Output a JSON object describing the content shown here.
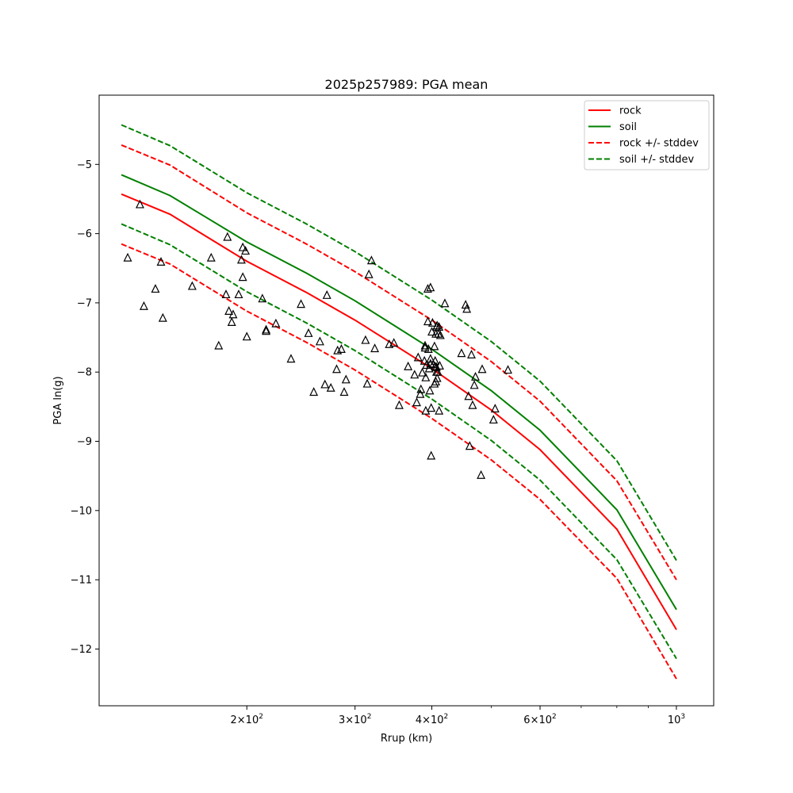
{
  "chart_data": {
    "type": "scatter",
    "title": "2025p257989: PGA mean",
    "xlabel": "Rrup (km)",
    "ylabel": "PGA ln(g)",
    "xscale": "log",
    "xlim": [
      115,
      1150
    ],
    "ylim": [
      -12.82,
      -4.0
    ],
    "x_ticks": [
      {
        "value": 200,
        "label_mantissa": "2",
        "label_exp": "2"
      },
      {
        "value": 300,
        "label_mantissa": "3",
        "label_exp": "2"
      },
      {
        "value": 400,
        "label_mantissa": "4",
        "label_exp": "2"
      },
      {
        "value": 600,
        "label_mantissa": "6",
        "label_exp": "2"
      },
      {
        "value": 1000,
        "label_mantissa": "",
        "label_exp": "3"
      }
    ],
    "x_minor_ticks": [
      500,
      700,
      800,
      900
    ],
    "y_ticks": [
      {
        "value": -5,
        "label": "−5"
      },
      {
        "value": -6,
        "label": "−6"
      },
      {
        "value": -7,
        "label": "−7"
      },
      {
        "value": -8,
        "label": "−8"
      },
      {
        "value": -9,
        "label": "−9"
      },
      {
        "value": -10,
        "label": "−10"
      },
      {
        "value": -11,
        "label": "−11"
      },
      {
        "value": -12,
        "label": "−12"
      }
    ],
    "grid": false,
    "legend_position": "top-right",
    "series": [
      {
        "name": "rock",
        "style": "solid",
        "color": "#ff0000",
        "x": [
          125,
          150,
          200,
          250,
          300,
          400,
          500,
          600,
          800,
          1000
        ],
        "y": [
          -5.43,
          -5.72,
          -6.4,
          -6.85,
          -7.25,
          -7.95,
          -8.55,
          -9.12,
          -10.27,
          -11.72
        ]
      },
      {
        "name": "soil",
        "style": "solid",
        "color": "#008000",
        "x": [
          125,
          150,
          200,
          250,
          300,
          400,
          500,
          600,
          800,
          1000
        ],
        "y": [
          -5.15,
          -5.45,
          -6.12,
          -6.57,
          -6.97,
          -7.67,
          -8.27,
          -8.84,
          -9.99,
          -11.43
        ]
      },
      {
        "name": "rock +/- stddev",
        "style": "dashed",
        "color": "#ff0000",
        "x": [
          125,
          150,
          200,
          250,
          300,
          400,
          500,
          600,
          800,
          1000
        ],
        "y": [
          -4.72,
          -5.01,
          -5.7,
          -6.15,
          -6.55,
          -7.25,
          -7.85,
          -8.42,
          -9.57,
          -11.0
        ]
      },
      {
        "name": "",
        "style": "dashed",
        "color": "#ff0000",
        "x": [
          125,
          150,
          200,
          250,
          300,
          400,
          500,
          600,
          800,
          1000
        ],
        "y": [
          -6.15,
          -6.44,
          -7.12,
          -7.57,
          -7.97,
          -8.67,
          -9.27,
          -9.84,
          -10.98,
          -12.43
        ]
      },
      {
        "name": "soil +/- stddev",
        "style": "dashed",
        "color": "#008000",
        "x": [
          125,
          150,
          200,
          250,
          300,
          400,
          500,
          600,
          800,
          1000
        ],
        "y": [
          -4.43,
          -4.73,
          -5.41,
          -5.86,
          -6.26,
          -6.96,
          -7.56,
          -8.13,
          -9.28,
          -10.72
        ]
      },
      {
        "name": "",
        "style": "dashed",
        "color": "#008000",
        "x": [
          125,
          150,
          200,
          250,
          300,
          400,
          500,
          600,
          800,
          1000
        ],
        "y": [
          -5.86,
          -6.16,
          -6.84,
          -7.29,
          -7.69,
          -8.39,
          -8.99,
          -9.56,
          -10.71,
          -12.14
        ]
      }
    ],
    "legend_entries": [
      {
        "label": "rock",
        "style": "solid",
        "color": "#ff0000"
      },
      {
        "label": "soil",
        "style": "solid",
        "color": "#008000"
      },
      {
        "label": "rock +/- stddev",
        "style": "dashed",
        "color": "#ff0000"
      },
      {
        "label": "soil +/- stddev",
        "style": "dashed",
        "color": "#008000"
      }
    ],
    "observations": {
      "marker": "triangle-up",
      "points": [
        [
          128,
          -6.35
        ],
        [
          134,
          -5.58
        ],
        [
          136,
          -7.05
        ],
        [
          142,
          -6.8
        ],
        [
          145,
          -6.41
        ],
        [
          146,
          -7.22
        ],
        [
          163,
          -6.76
        ],
        [
          175,
          -6.35
        ],
        [
          180,
          -7.62
        ],
        [
          185,
          -6.88
        ],
        [
          186,
          -6.05
        ],
        [
          187,
          -7.12
        ],
        [
          189,
          -7.28
        ],
        [
          190,
          -7.17
        ],
        [
          194,
          -6.88
        ],
        [
          196,
          -6.38
        ],
        [
          197,
          -6.63
        ],
        [
          197,
          -6.2
        ],
        [
          199,
          -6.25
        ],
        [
          200,
          -7.49
        ],
        [
          212,
          -6.94
        ],
        [
          215,
          -7.39
        ],
        [
          215,
          -7.41
        ],
        [
          223,
          -7.3
        ],
        [
          236,
          -7.81
        ],
        [
          245,
          -7.02
        ],
        [
          252,
          -7.44
        ],
        [
          257,
          -8.29
        ],
        [
          263,
          -7.56
        ],
        [
          268,
          -8.18
        ],
        [
          270,
          -6.89
        ],
        [
          274,
          -8.23
        ],
        [
          280,
          -7.96
        ],
        [
          281,
          -7.69
        ],
        [
          285,
          -7.67
        ],
        [
          288,
          -8.29
        ],
        [
          290,
          -8.11
        ],
        [
          312,
          -7.54
        ],
        [
          314,
          -8.17
        ],
        [
          316,
          -6.59
        ],
        [
          319,
          -6.39
        ],
        [
          323,
          -7.66
        ],
        [
          341,
          -7.6
        ],
        [
          347,
          -7.58
        ],
        [
          354,
          -8.48
        ],
        [
          366,
          -7.92
        ],
        [
          375,
          -8.04
        ],
        [
          378,
          -8.44
        ],
        [
          380,
          -7.79
        ],
        [
          383,
          -8.32
        ],
        [
          384,
          -8.25
        ],
        [
          386,
          -8.01
        ],
        [
          389,
          -7.84
        ],
        [
          390,
          -7.62
        ],
        [
          390,
          -7.65
        ],
        [
          391,
          -8.56
        ],
        [
          391,
          -8.08
        ],
        [
          392,
          -7.9
        ],
        [
          394,
          -6.8
        ],
        [
          394,
          -7.27
        ],
        [
          395,
          -7.67
        ],
        [
          396,
          -7.95
        ],
        [
          397,
          -8.27
        ],
        [
          398,
          -7.88
        ],
        [
          398,
          -6.78
        ],
        [
          398,
          -7.81
        ],
        [
          399,
          -8.52
        ],
        [
          399,
          -9.21
        ],
        [
          400,
          -7.42
        ],
        [
          401,
          -7.29
        ],
        [
          402,
          -7.89
        ],
        [
          404,
          -7.63
        ],
        [
          404,
          -8.17
        ],
        [
          405,
          -7.84
        ],
        [
          405,
          -7.92
        ],
        [
          406,
          -8.14
        ],
        [
          406,
          -7.45
        ],
        [
          407,
          -7.35
        ],
        [
          407,
          -7.93
        ],
        [
          407,
          -8.0
        ],
        [
          408,
          -7.33
        ],
        [
          408,
          -8.09
        ],
        [
          409,
          -8.0
        ],
        [
          410,
          -7.45
        ],
        [
          411,
          -7.35
        ],
        [
          411,
          -8.56
        ],
        [
          412,
          -7.91
        ],
        [
          413,
          -7.47
        ],
        [
          420,
          -7.01
        ],
        [
          447,
          -7.73
        ],
        [
          454,
          -7.03
        ],
        [
          456,
          -7.09
        ],
        [
          459,
          -8.35
        ],
        [
          461,
          -9.07
        ],
        [
          464,
          -7.75
        ],
        [
          466,
          -8.48
        ],
        [
          469,
          -8.19
        ],
        [
          471,
          -8.07
        ],
        [
          481,
          -9.49
        ],
        [
          483,
          -7.96
        ],
        [
          504,
          -8.69
        ],
        [
          507,
          -8.53
        ],
        [
          532,
          -7.97
        ]
      ]
    }
  }
}
